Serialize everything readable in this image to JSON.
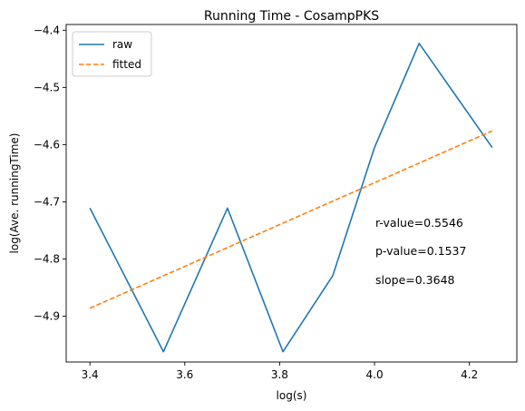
{
  "chart_data": {
    "type": "line",
    "title": "Running Time - CosampPKS",
    "xlabel": "log(s)",
    "ylabel": "log(Ave. runningTime)",
    "xlim": [
      3.35,
      4.3
    ],
    "ylim": [
      -4.98,
      -4.39
    ],
    "x_ticks": [
      3.4,
      3.6,
      3.8,
      4.0,
      4.2
    ],
    "x_tick_labels": [
      "3.4",
      "3.6",
      "3.8",
      "4.0",
      "4.2"
    ],
    "y_ticks": [
      -4.4,
      -4.5,
      -4.6,
      -4.7,
      -4.8,
      -4.9
    ],
    "y_tick_labels": [
      "−4.4",
      "−4.5",
      "−4.6",
      "−4.7",
      "−4.8",
      "−4.9"
    ],
    "grid": false,
    "legend": {
      "placement": "upper-left"
    },
    "series": [
      {
        "name": "raw",
        "style": "solid",
        "color": "#1f77b4",
        "x": [
          3.4,
          3.555,
          3.69,
          3.807,
          3.912,
          4.0,
          4.094,
          4.248
        ],
        "y": [
          -4.711,
          -4.962,
          -4.711,
          -4.962,
          -4.829,
          -4.605,
          -4.423,
          -4.605
        ]
      },
      {
        "name": "fitted",
        "style": "dashed",
        "color": "#ff7f0e",
        "x": [
          3.4,
          4.248
        ],
        "y": [
          -4.886,
          -4.576
        ]
      }
    ],
    "annotations": [
      "r-value=0.5546",
      "p-value=0.1537",
      "slope=0.3648"
    ]
  }
}
